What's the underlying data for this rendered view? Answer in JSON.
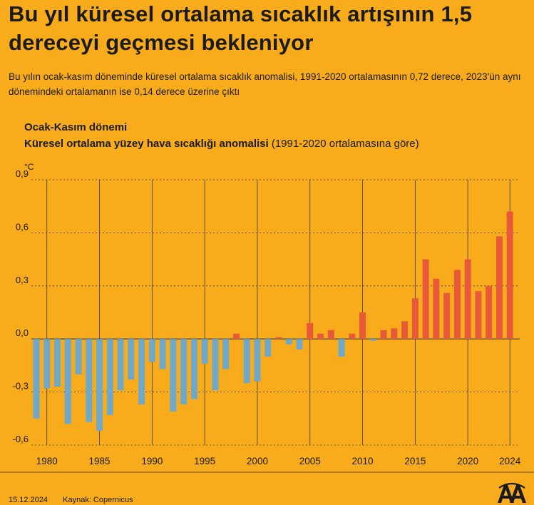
{
  "title": "Bu yıl küresel ortalama sıcaklık artışının 1,5 dereceyi geçmesi bekleniyor",
  "subtitle": "Bu yılın ocak-kasım döneminde küresel ortalama sıcaklık anomalisi, 1991-2020 ortalamasının 0,72 derece, 2023'ün aynı dönemindeki ortalamanın ise 0,14 derece üzerine çıktı",
  "chart_header": {
    "period": "Ocak-Kasım dönemi",
    "label_bold": "Küresel ortalama yüzey hava sıcaklığı anomalisi",
    "label_paren": "(1991-2020 ortalamasına göre)"
  },
  "footer": {
    "date": "15.12.2024",
    "source": "Kaynak: Copernicus"
  },
  "colors": {
    "background": "#F8AC1B",
    "positive": "#E8593A",
    "negative": "#6FA8C9",
    "grid": "#3a3a3a"
  },
  "chart_data": {
    "type": "bar",
    "unit": "°C",
    "ylim": [
      -0.6,
      0.9
    ],
    "yticks": [
      0.9,
      0.6,
      0.3,
      0.0,
      -0.3,
      -0.6
    ],
    "ytick_labels": [
      "0,9",
      "0,6",
      "0,3",
      "0,0",
      "-0,3",
      "-0,6"
    ],
    "xticks": [
      1980,
      1985,
      1990,
      1995,
      2000,
      2005,
      2010,
      2015,
      2020,
      2024
    ],
    "xtick_labels": [
      "1980",
      "1985",
      "1990",
      "1995",
      "2000",
      "2005",
      "2010",
      "2015",
      "2020",
      "2024"
    ],
    "categories": [
      1979,
      1980,
      1981,
      1982,
      1983,
      1984,
      1985,
      1986,
      1987,
      1988,
      1989,
      1990,
      1991,
      1992,
      1993,
      1994,
      1995,
      1996,
      1997,
      1998,
      1999,
      2000,
      2001,
      2002,
      2003,
      2004,
      2005,
      2006,
      2007,
      2008,
      2009,
      2010,
      2011,
      2012,
      2013,
      2014,
      2015,
      2016,
      2017,
      2018,
      2019,
      2020,
      2021,
      2022,
      2023,
      2024
    ],
    "values": [
      -0.45,
      -0.28,
      -0.27,
      -0.48,
      -0.2,
      -0.47,
      -0.52,
      -0.43,
      -0.29,
      -0.23,
      -0.37,
      -0.13,
      -0.17,
      -0.41,
      -0.37,
      -0.34,
      -0.14,
      -0.29,
      -0.17,
      0.03,
      -0.25,
      -0.24,
      -0.1,
      0.01,
      -0.03,
      -0.06,
      0.09,
      0.03,
      0.05,
      -0.1,
      0.03,
      0.15,
      -0.01,
      0.05,
      0.06,
      0.1,
      0.23,
      0.45,
      0.34,
      0.26,
      0.39,
      0.45,
      0.27,
      0.3,
      0.58,
      0.72
    ]
  }
}
